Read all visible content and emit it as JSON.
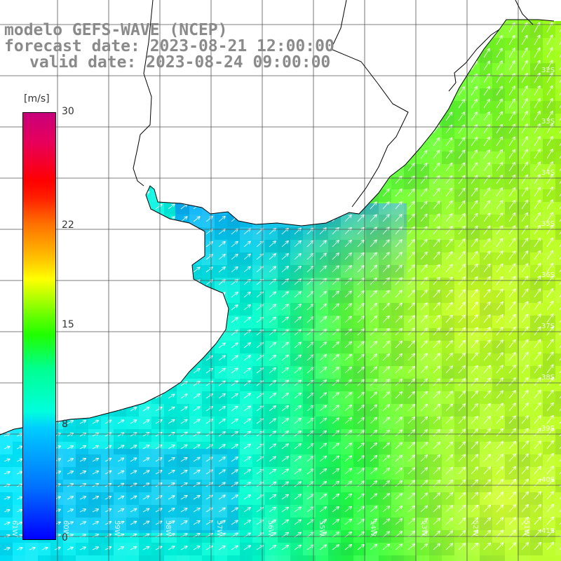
{
  "header": {
    "model_line": "modelo GEFS-WAVE (NCEP)",
    "forecast_line": "forecast date: 2023-08-21 12:00:00",
    "valid_line": "valid date: 2023-08-24 09:00:00"
  },
  "colorbar": {
    "unit": "[m/s]",
    "ticks": [
      {
        "value": 30,
        "label": "30"
      },
      {
        "value": 22,
        "label": "22"
      },
      {
        "value": 15,
        "label": "15"
      },
      {
        "value": 8,
        "label": "8"
      },
      {
        "value": 0,
        "label": "0"
      }
    ],
    "vmin": 0,
    "vmax": 30
  },
  "map": {
    "lat_labels": [
      "32S",
      "33S",
      "34S",
      "35S",
      "36S",
      "37S",
      "38S",
      "39S",
      "40S",
      "41S"
    ],
    "lon_labels": [
      "61W",
      "60W",
      "59W",
      "58W",
      "57W",
      "56W",
      "55W",
      "54W",
      "53W",
      "52W",
      "51W"
    ],
    "land_color": "#ffffff",
    "coast_color": "#000000",
    "grid_color": "#555555",
    "arrow_color": "#ffffff",
    "wind_direction": "toward northeast"
  }
}
